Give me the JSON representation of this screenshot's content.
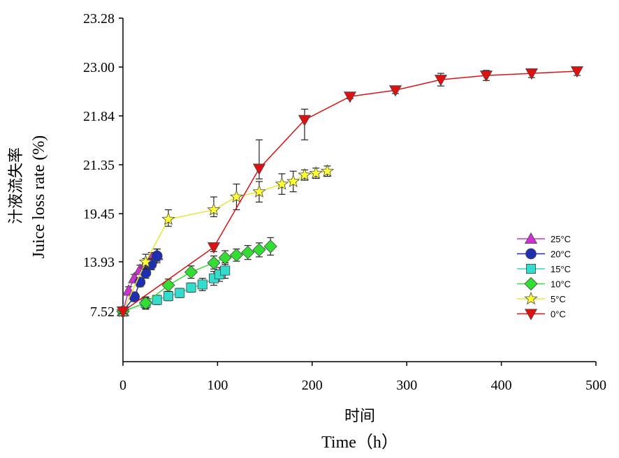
{
  "chart_data": {
    "type": "line",
    "xlabel_cn": "时间",
    "xlabel": "Time（h）",
    "ylabel_cn": "汁液流失率",
    "ylabel": "Juice loss rate (%)",
    "xlim": [
      0,
      500
    ],
    "x_ticks": [
      "0",
      "100",
      "200",
      "300",
      "400",
      "500"
    ],
    "y_ticks": [
      "7.52",
      "13.93",
      "19.45",
      "21.35",
      "21.84",
      "23.00",
      "23.28"
    ],
    "legend_position": "right",
    "series": [
      {
        "name": "25°C",
        "color": "#cc33cc",
        "marker": "triangle-up",
        "x": [
          0,
          6,
          12,
          18,
          24,
          30,
          36
        ],
        "y": [
          7.52,
          10.2,
          11.8,
          12.9,
          13.7,
          14.3,
          14.7
        ],
        "err": [
          0.4,
          0.5,
          0.5,
          0.6,
          0.6,
          0.7,
          0.7
        ]
      },
      {
        "name": "20°C",
        "color": "#1f2fb0",
        "marker": "circle",
        "x": [
          0,
          12,
          18,
          24,
          30,
          36
        ],
        "y": [
          7.52,
          9.4,
          11.3,
          12.5,
          13.6,
          14.6
        ],
        "err": [
          0.3,
          0.6,
          0.6,
          0.7,
          0.7,
          0.8
        ]
      },
      {
        "name": "15°C",
        "color": "#33dccc",
        "marker": "square",
        "x": [
          0,
          24,
          36,
          48,
          60,
          72,
          84,
          96,
          102,
          108
        ],
        "y": [
          7.52,
          8.6,
          9.0,
          9.5,
          9.9,
          10.6,
          11.0,
          11.8,
          12.3,
          12.8
        ],
        "err": [
          0.4,
          0.8,
          0.6,
          0.6,
          0.6,
          0.6,
          0.8,
          0.9,
          0.9,
          1.0
        ]
      },
      {
        "name": "10°C",
        "color": "#33dd33",
        "marker": "diamond",
        "x": [
          0,
          24,
          48,
          72,
          96,
          108,
          120,
          132,
          144,
          156
        ],
        "y": [
          7.52,
          8.6,
          10.9,
          12.6,
          13.8,
          14.4,
          14.7,
          15.0,
          15.3,
          15.7
        ],
        "err": [
          0.3,
          0.7,
          0.8,
          0.8,
          0.8,
          0.8,
          0.7,
          0.8,
          0.8,
          1.0
        ]
      },
      {
        "name": "5°C",
        "color": "#ffff33",
        "marker": "star",
        "x": [
          0,
          24,
          48,
          96,
          120,
          144,
          168,
          180,
          192,
          204,
          216
        ],
        "y": [
          7.52,
          13.9,
          18.8,
          19.6,
          20.1,
          20.3,
          20.6,
          20.7,
          20.95,
          21.02,
          21.1
        ],
        "err": [
          0.4,
          0.9,
          0.8,
          0.5,
          0.5,
          0.4,
          0.4,
          0.4,
          0.2,
          0.2,
          0.2
        ]
      },
      {
        "name": "0°C",
        "color": "#dd1111",
        "marker": "triangle-down",
        "x": [
          0,
          96,
          144,
          192,
          240,
          288,
          336,
          384,
          432,
          480
        ],
        "y": [
          7.52,
          15.6,
          21.2,
          21.8,
          22.3,
          22.45,
          22.7,
          22.8,
          22.85,
          22.9
        ],
        "err": [
          0.3,
          0.5,
          0.4,
          0.2,
          0.05,
          0.08,
          0.15,
          0.12,
          0.1,
          0.1
        ]
      }
    ]
  }
}
